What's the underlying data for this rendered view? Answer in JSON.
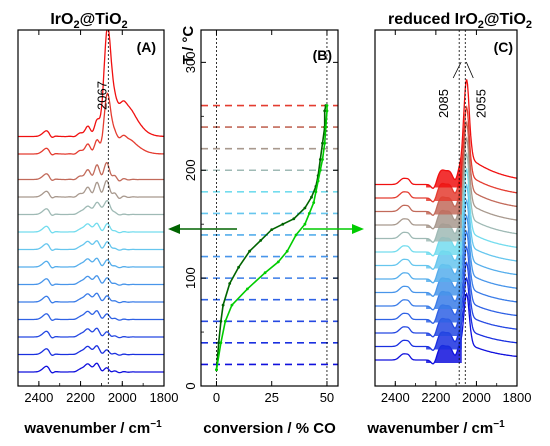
{
  "chart_data": [
    {
      "type": "line",
      "panel": "(A)",
      "title": "IrO2@TiO2",
      "title_sub": "2",
      "xlabel": "wavenumber / cm",
      "xlabel_sup": "−1",
      "xlim": [
        2500,
        1800
      ],
      "x_ticks": [
        "2400",
        "2200",
        "2000",
        "1800"
      ],
      "marker_x": 2067,
      "annotation": "2067",
      "spectra_colors": [
        "#1010dd",
        "#1a30e0",
        "#2548e2",
        "#2f62e5",
        "#3a7ce8",
        "#4895ea",
        "#56aeec",
        "#66c6ee",
        "#73dcee",
        "#9fbab5",
        "#a8998e",
        "#c26a5a",
        "#e43c30",
        "#f01010"
      ]
    },
    {
      "type": "line",
      "panel": "(B)",
      "ylabel": "T / °C",
      "xlabel": "conversion / % CO",
      "ylim": [
        0,
        330
      ],
      "xlim": [
        -7,
        55
      ],
      "x_ticks": [
        "0",
        "25",
        "50"
      ],
      "y_ticks": [
        "0",
        "100",
        "200",
        "300"
      ],
      "temperature_levels": [
        20,
        40,
        60,
        80,
        100,
        120,
        140,
        160,
        180,
        200,
        220,
        240,
        260
      ],
      "level_colors": [
        "#1010dd",
        "#1a30e0",
        "#2548e2",
        "#2f62e5",
        "#3a7ce8",
        "#4895ea",
        "#56aeec",
        "#66c6ee",
        "#73dcee",
        "#9fbab5",
        "#a8998e",
        "#c26a5a",
        "#e43c30"
      ],
      "series": [
        {
          "color": "#006400",
          "points": [
            [
              0,
              15
            ],
            [
              1,
              40
            ],
            [
              2,
              60
            ],
            [
              3,
              75
            ],
            [
              6,
              95
            ],
            [
              10,
              110
            ],
            [
              15,
              125
            ],
            [
              20,
              135
            ],
            [
              25,
              145
            ],
            [
              30,
              150
            ],
            [
              35,
              155
            ],
            [
              40,
              165
            ],
            [
              43,
              175
            ],
            [
              45,
              185
            ],
            [
              46,
              195
            ],
            [
              47,
              210
            ],
            [
              48,
              225
            ],
            [
              49,
              240
            ],
            [
              49,
              255
            ],
            [
              49.5,
              260
            ]
          ]
        },
        {
          "color": "#00cc00",
          "points": [
            [
              0,
              15
            ],
            [
              2,
              40
            ],
            [
              4,
              60
            ],
            [
              7,
              75
            ],
            [
              14,
              90
            ],
            [
              22,
              105
            ],
            [
              28,
              115
            ],
            [
              32,
              125
            ],
            [
              36,
              140
            ],
            [
              40,
              150
            ],
            [
              42,
              160
            ],
            [
              44,
              170
            ],
            [
              45,
              180
            ],
            [
              46,
              190
            ],
            [
              47,
              200
            ],
            [
              48,
              210
            ],
            [
              49,
              225
            ],
            [
              49.5,
              240
            ],
            [
              50,
              255
            ],
            [
              50,
              260
            ]
          ]
        }
      ]
    },
    {
      "type": "line",
      "panel": "(C)",
      "title": "reduced IrO2@TiO2",
      "xlabel": "wavenumber / cm",
      "xlabel_sup": "−1",
      "xlim": [
        2500,
        1800
      ],
      "x_ticks": [
        "2400",
        "2200",
        "2000",
        "1800"
      ],
      "marker_x": [
        2085,
        2055
      ],
      "annotations": [
        "2085",
        "2055"
      ],
      "spectra_colors": [
        "#1010dd",
        "#1a30e0",
        "#2548e2",
        "#2f62e5",
        "#3a7ce8",
        "#4895ea",
        "#56aeec",
        "#66c6ee",
        "#73dcee",
        "#9fbab5",
        "#a8998e",
        "#c26a5a",
        "#e43c30",
        "#f01010"
      ]
    }
  ],
  "titles": {
    "left": "IrO",
    "left_sub1": "2",
    "left_at": "@TiO",
    "left_sub2": "2",
    "right": "reduced IrO",
    "right_sub1": "2",
    "right_at": "@TiO",
    "right_sub2": "2"
  },
  "colors": {
    "dark_green": "#006400",
    "light_green": "#00cc00",
    "frame": "#000000"
  }
}
